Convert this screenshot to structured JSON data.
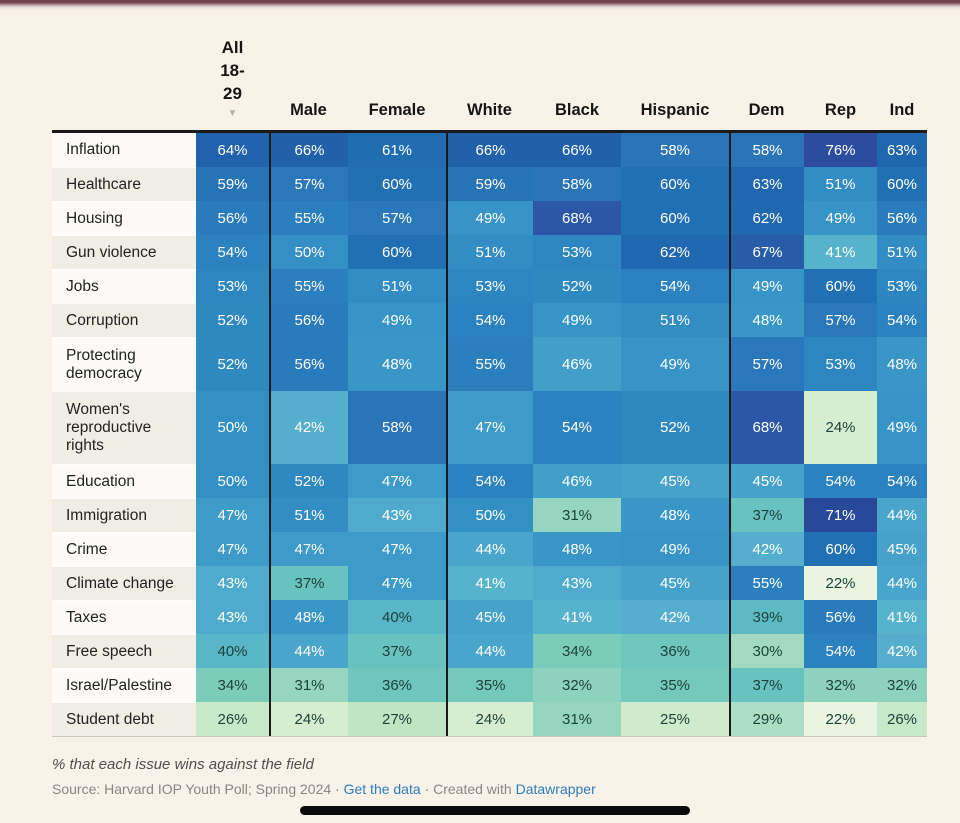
{
  "chart_data": {
    "type": "heatmap",
    "title": "",
    "note": "% that each issue wins against the field",
    "unit": "%",
    "columns": [
      {
        "id": "all-18-29",
        "label": "All 18-29",
        "lines": [
          "All",
          "18-",
          "29"
        ],
        "sort_indicator": "▼"
      },
      {
        "id": "male",
        "label": "Male"
      },
      {
        "id": "female",
        "label": "Female"
      },
      {
        "id": "white",
        "label": "White"
      },
      {
        "id": "black",
        "label": "Black"
      },
      {
        "id": "hispanic",
        "label": "Hispanic"
      },
      {
        "id": "dem",
        "label": "Dem"
      },
      {
        "id": "rep",
        "label": "Rep"
      },
      {
        "id": "ind",
        "label": "Ind"
      }
    ],
    "rows": [
      {
        "label": "Inflation",
        "values": [
          64,
          66,
          61,
          66,
          66,
          58,
          58,
          76,
          63
        ]
      },
      {
        "label": "Healthcare",
        "values": [
          59,
          57,
          60,
          59,
          58,
          60,
          63,
          51,
          60
        ]
      },
      {
        "label": "Housing",
        "values": [
          56,
          55,
          57,
          49,
          68,
          60,
          62,
          49,
          56
        ]
      },
      {
        "label": "Gun violence",
        "values": [
          54,
          50,
          60,
          51,
          53,
          62,
          67,
          41,
          51
        ]
      },
      {
        "label": "Jobs",
        "values": [
          53,
          55,
          51,
          53,
          52,
          54,
          49,
          60,
          53
        ]
      },
      {
        "label": "Corruption",
        "values": [
          52,
          56,
          49,
          54,
          49,
          51,
          48,
          57,
          54
        ]
      },
      {
        "label": "Protecting democracy",
        "values": [
          52,
          56,
          48,
          55,
          46,
          49,
          57,
          53,
          48
        ]
      },
      {
        "label": "Women's reproductive rights",
        "values": [
          50,
          42,
          58,
          47,
          54,
          52,
          68,
          24,
          49
        ]
      },
      {
        "label": "Education",
        "values": [
          50,
          52,
          47,
          54,
          46,
          45,
          45,
          54,
          54
        ]
      },
      {
        "label": "Immigration",
        "values": [
          47,
          51,
          43,
          50,
          31,
          48,
          37,
          71,
          44
        ]
      },
      {
        "label": "Crime",
        "values": [
          47,
          47,
          47,
          44,
          48,
          49,
          42,
          60,
          45
        ]
      },
      {
        "label": "Climate change",
        "values": [
          43,
          37,
          47,
          41,
          43,
          45,
          55,
          22,
          44
        ]
      },
      {
        "label": "Taxes",
        "values": [
          43,
          48,
          40,
          45,
          41,
          42,
          39,
          56,
          41
        ]
      },
      {
        "label": "Free speech",
        "values": [
          40,
          44,
          37,
          44,
          34,
          36,
          30,
          54,
          42
        ]
      },
      {
        "label": "Israel/Palestine",
        "values": [
          34,
          31,
          36,
          35,
          32,
          35,
          37,
          32,
          32
        ]
      },
      {
        "label": "Student debt",
        "values": [
          26,
          24,
          27,
          24,
          31,
          25,
          29,
          22,
          26
        ]
      }
    ],
    "style": {
      "color_scale": [
        {
          "v": 22,
          "c": "#e9f5e0"
        },
        {
          "v": 24,
          "c": "#d6eed0"
        },
        {
          "v": 27,
          "c": "#bfe5c5"
        },
        {
          "v": 29,
          "c": "#abdec3"
        },
        {
          "v": 31,
          "c": "#96d5bf"
        },
        {
          "v": 34,
          "c": "#7cccba"
        },
        {
          "v": 36,
          "c": "#6ec6bc"
        },
        {
          "v": 38,
          "c": "#62bec2"
        },
        {
          "v": 40,
          "c": "#58b6c8"
        },
        {
          "v": 42,
          "c": "#55aecd"
        },
        {
          "v": 44,
          "c": "#4aa5cc"
        },
        {
          "v": 46,
          "c": "#419fca"
        },
        {
          "v": 48,
          "c": "#3997c7"
        },
        {
          "v": 50,
          "c": "#3390c4"
        },
        {
          "v": 52,
          "c": "#2e89c1"
        },
        {
          "v": 54,
          "c": "#2b82be"
        },
        {
          "v": 56,
          "c": "#2a7bbb"
        },
        {
          "v": 58,
          "c": "#2a75b8"
        },
        {
          "v": 60,
          "c": "#2270b4"
        },
        {
          "v": 62,
          "c": "#2069b0"
        },
        {
          "v": 64,
          "c": "#2062ab"
        },
        {
          "v": 66,
          "c": "#2161a9"
        },
        {
          "v": 68,
          "c": "#2b57a6"
        },
        {
          "v": 71,
          "c": "#28489a"
        },
        {
          "v": 76,
          "c": "#2c4c9d"
        }
      ],
      "dark_text_below": 41,
      "dark_text_color": "#1d423a",
      "light_text_color": "#ffffff",
      "accent_top_bar": "#73434c"
    }
  },
  "footer": {
    "note": "% that each issue wins against the field",
    "source_prefix": "Source: Harvard IOP Youth Poll; Spring 2024",
    "separator": " · ",
    "link_get_data": "Get the data",
    "created_with": "Created with ",
    "link_datawrapper": "Datawrapper"
  }
}
